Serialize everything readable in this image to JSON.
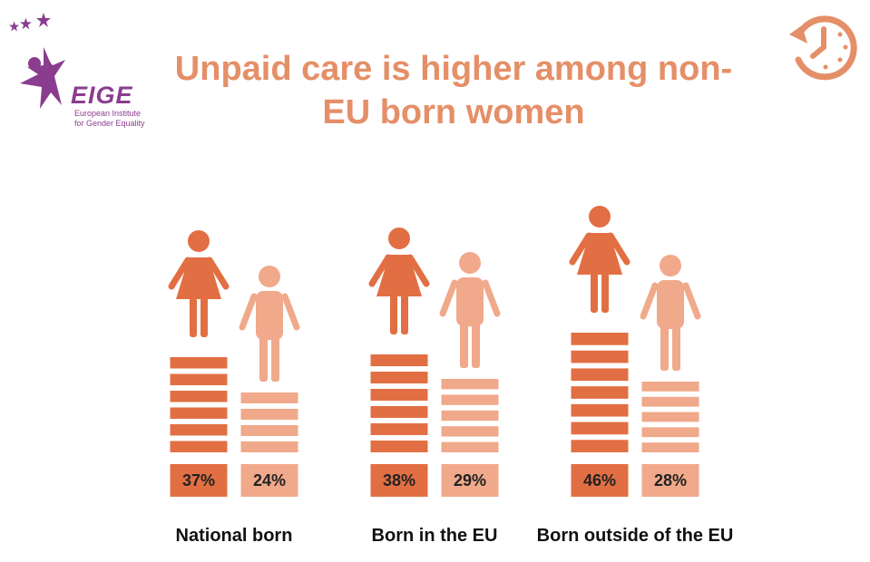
{
  "logo": {
    "name": "EIGE",
    "subtitle_line1": "European Institute",
    "subtitle_line2": "for Gender Equality"
  },
  "title": "Unpaid care is higher among non-EU born women",
  "chart_data": {
    "type": "bar",
    "title": "Unpaid care is higher among non-EU born women",
    "categories": [
      "National born",
      "Born in the EU",
      "Born outside of the EU"
    ],
    "series": [
      {
        "values": [
          37,
          38,
          46
        ],
        "color": "#e26f43",
        "icon": "woman-icon"
      },
      {
        "values": [
          24,
          29,
          28
        ],
        "color": "#f0a98a",
        "icon": "man-icon"
      }
    ],
    "value_labels": [
      [
        "37%",
        "24%"
      ],
      [
        "38%",
        "29%"
      ],
      [
        "46%",
        "28%"
      ]
    ],
    "unit": "%",
    "ylim": [
      0,
      50
    ],
    "grid": false,
    "legend": "none"
  },
  "colors": {
    "title": "#e58f68",
    "women": "#e26f43",
    "men": "#f0a98a",
    "logo": "#8a3d8f"
  },
  "icons": [
    "clock-icon",
    "woman-icon",
    "man-icon",
    "star-icon"
  ]
}
